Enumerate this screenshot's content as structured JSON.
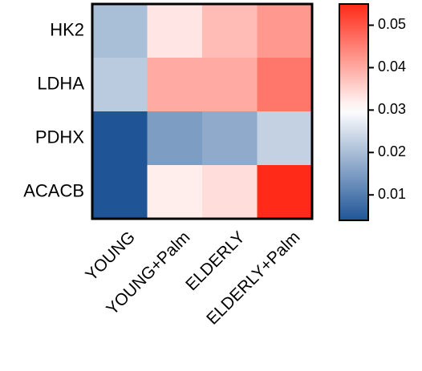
{
  "chart_data": {
    "type": "heatmap",
    "rows": [
      "HK2",
      "LDHA",
      "PDHX",
      "ACACB"
    ],
    "columns": [
      "YOUNG",
      "YOUNG+Palm",
      "ELDERLY",
      "ELDERLY+Palm"
    ],
    "values": [
      [
        0.02,
        0.033,
        0.038,
        0.042
      ],
      [
        0.022,
        0.04,
        0.04,
        0.046
      ],
      [
        0.004,
        0.015,
        0.017,
        0.023
      ],
      [
        0.004,
        0.032,
        0.034,
        0.055
      ]
    ],
    "colorbar": {
      "min": 0.004,
      "max": 0.055,
      "mid": 0.03,
      "ticks": [
        "0.01",
        "0.02",
        "0.03",
        "0.04",
        "0.05"
      ],
      "tick_values": [
        0.01,
        0.02,
        0.03,
        0.04,
        0.05
      ],
      "colormap": [
        "#1f5597",
        "#ffffff",
        "#ff2a17"
      ]
    },
    "title": "",
    "xlabel": "",
    "ylabel": ""
  }
}
